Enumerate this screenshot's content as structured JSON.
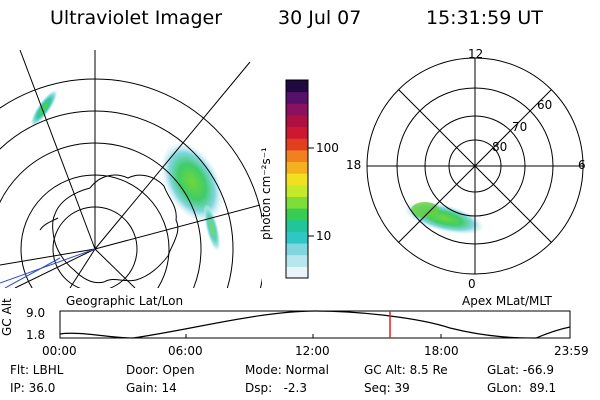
{
  "header": {
    "title": "Ultraviolet Imager",
    "date": "30 Jul 07",
    "time": "15:31:59 UT"
  },
  "colorbar": {
    "unit_label": "photon cm⁻²s⁻¹",
    "tick_100": "100",
    "tick_10": "10",
    "colors": [
      "#e8f4f8",
      "#b8e6ee",
      "#7fd6df",
      "#2fc7c3",
      "#20c69a",
      "#38cc52",
      "#7fdd38",
      "#c4ea2a",
      "#f0e020",
      "#f5b020",
      "#f08020",
      "#e04020",
      "#cc1830",
      "#b01040",
      "#8a1060",
      "#55106a",
      "#200840"
    ]
  },
  "map_left": {
    "label": "Geographic Lat/Lon"
  },
  "map_right": {
    "label": "Apex MLat/MLT",
    "mlt_labels": {
      "top": "12",
      "left": "18",
      "right": "6",
      "bottom": "0"
    },
    "lat_labels": [
      "60",
      "70",
      "80"
    ]
  },
  "timeline": {
    "ylabel": "GC Alt",
    "ytick_top": "9.0",
    "ytick_bottom": "1.8",
    "xticks": [
      "00:00",
      "06:00",
      "12:00",
      "18:00",
      "23:59"
    ],
    "marker_color": "#e02020"
  },
  "info": {
    "flt": "Flt: LBHL",
    "ip": "IP: 36.0",
    "door": "Door: Open",
    "gain": "Gain: 14",
    "mode": "Mode: Normal",
    "dsp": "Dsp:   -2.3",
    "gcalt": "GC Alt: 8.5 Re",
    "seq": "Seq: 39",
    "glat": "GLat: -66.9",
    "glon": "GLon:  89.1"
  }
}
